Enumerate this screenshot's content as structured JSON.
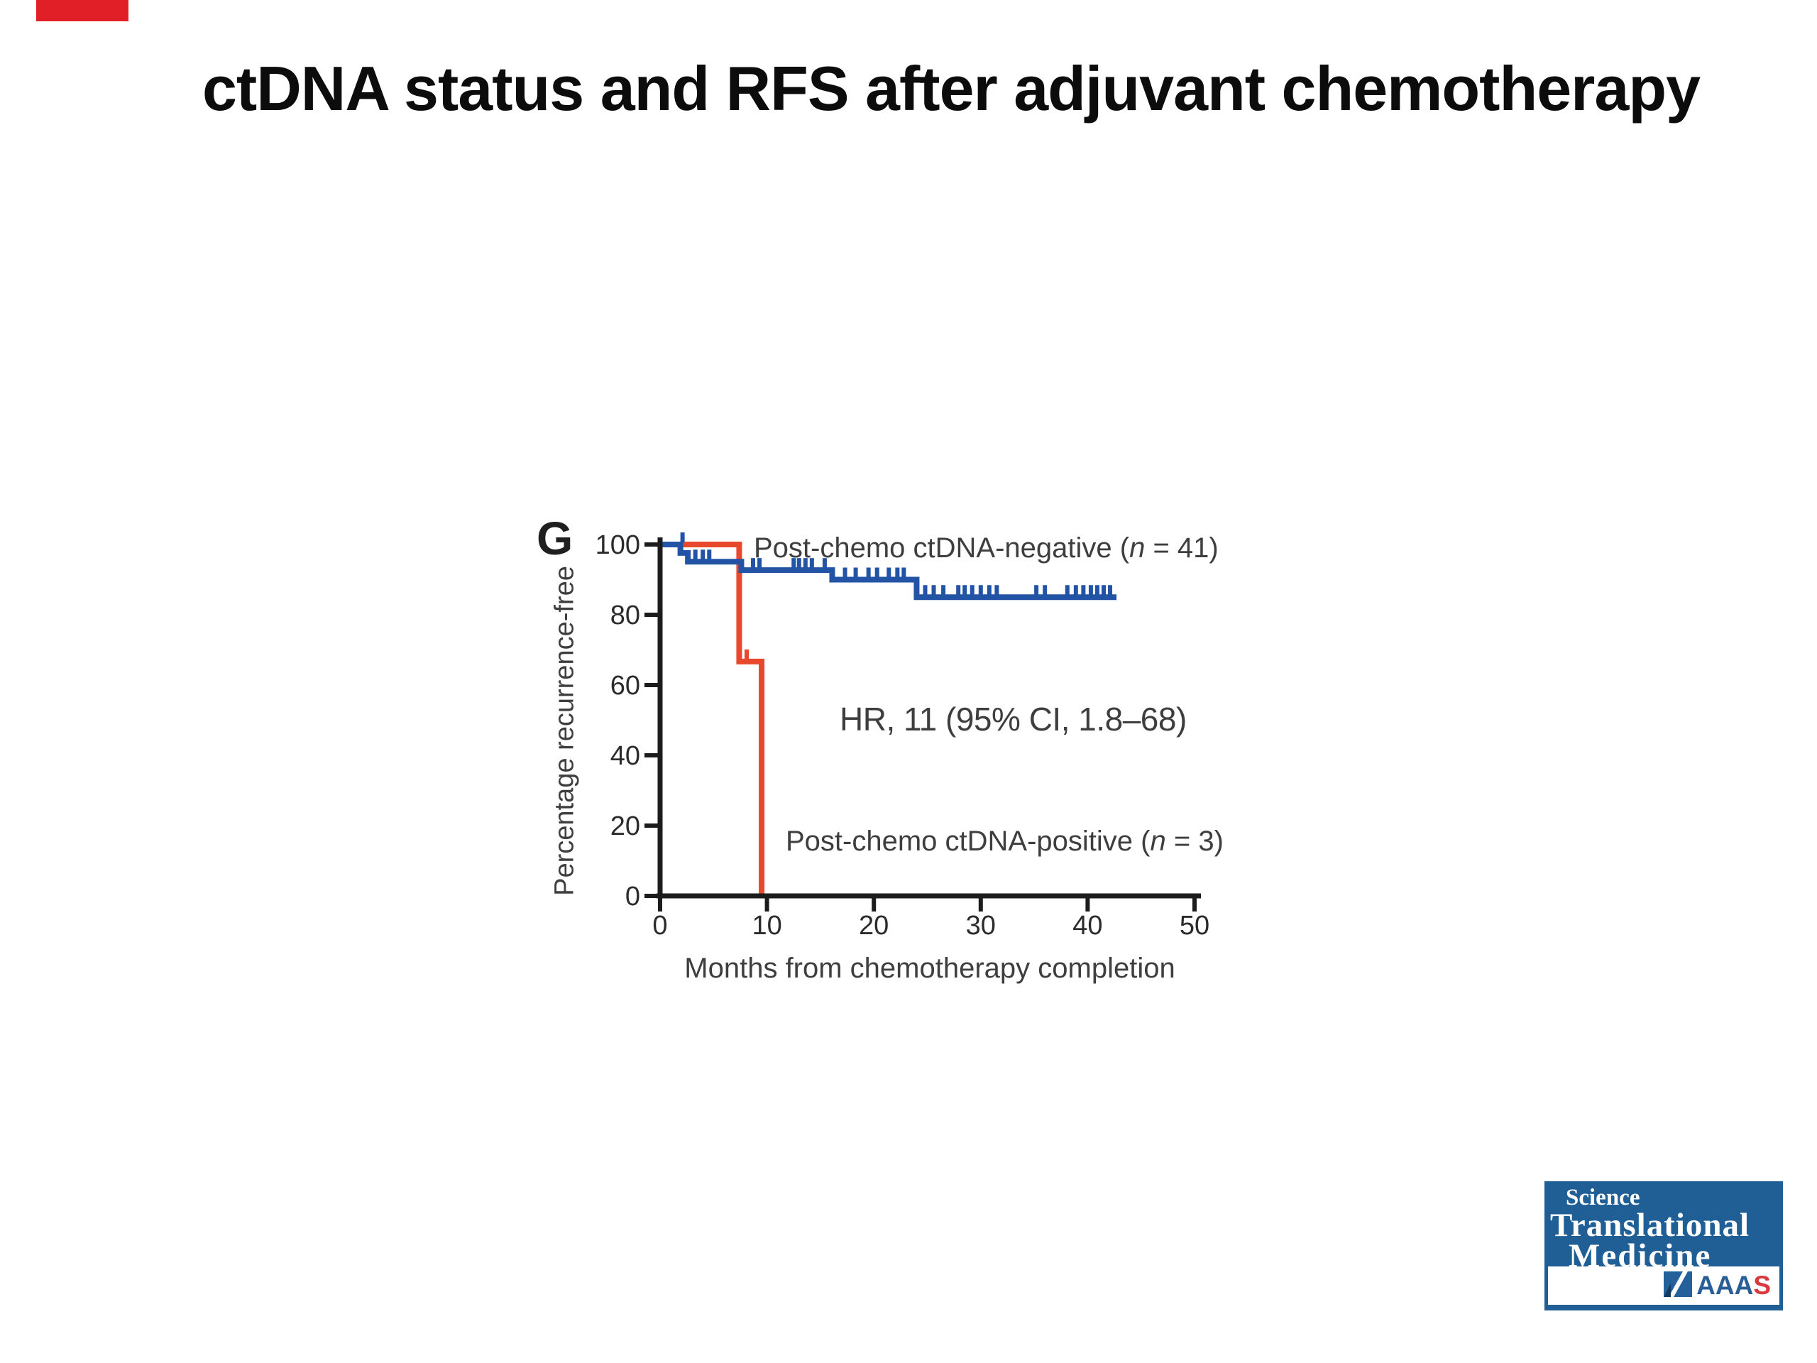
{
  "slide": {
    "title": "ctDNA status and RFS after adjuvant chemotherapy",
    "red_marker_color": "#e01f27"
  },
  "figure": {
    "panel_label": "G",
    "y_axis_label": "Percentage recurrence-free",
    "x_axis_label": "Months from chemotherapy completion",
    "hr_annotation": "HR, 11 (95% CI, 1.8–68)",
    "legend_negative": {
      "prefix": "Post-chemo ctDNA-negative (",
      "n": "n",
      "suffix": " = 41)"
    },
    "legend_positive": {
      "prefix": "Post-chemo ctDNA-positive (",
      "n": "n",
      "suffix": " = 3)"
    }
  },
  "chart_data": {
    "type": "line",
    "subtype": "kaplan-meier-step",
    "title": "",
    "xlabel": "Months from chemotherapy completion",
    "ylabel": "Percentage recurrence-free",
    "xlim": [
      0,
      50
    ],
    "ylim": [
      0,
      100
    ],
    "x_ticks": [
      0,
      10,
      20,
      30,
      40,
      50
    ],
    "y_ticks": [
      0,
      20,
      40,
      60,
      80,
      100
    ],
    "grid": false,
    "legend_position": "inline-annotations",
    "annotations": [
      "HR, 11 (95% CI, 1.8–68)"
    ],
    "axis_color": "#1c1c1c",
    "tick_label_color": "#2b2b2b",
    "series": [
      {
        "name": "Post-chemo ctDNA-negative (n = 41)",
        "color": "#2253a5",
        "steps": [
          [
            0,
            100
          ],
          [
            1.9,
            100
          ],
          [
            1.9,
            97.6
          ],
          [
            2.6,
            97.6
          ],
          [
            2.6,
            95.1
          ],
          [
            7.6,
            95.1
          ],
          [
            7.6,
            92.7
          ],
          [
            16.1,
            92.7
          ],
          [
            16.1,
            90.0
          ],
          [
            24,
            90.0
          ],
          [
            24,
            85.0
          ],
          [
            42.7,
            85.0
          ]
        ],
        "censor_marks": [
          [
            2.1,
            100
          ],
          [
            3.3,
            95.1
          ],
          [
            4.0,
            95.1
          ],
          [
            4.6,
            95.1
          ],
          [
            8.7,
            92.7
          ],
          [
            9.3,
            92.7
          ],
          [
            12.5,
            92.7
          ],
          [
            13.0,
            92.7
          ],
          [
            13.6,
            92.7
          ],
          [
            14.2,
            92.7
          ],
          [
            15.4,
            92.7
          ],
          [
            17.3,
            90.0
          ],
          [
            18.3,
            90.0
          ],
          [
            19.5,
            90.0
          ],
          [
            20.3,
            90.0
          ],
          [
            21.4,
            90.0
          ],
          [
            22.2,
            90.0
          ],
          [
            22.8,
            90.0
          ],
          [
            24.8,
            85.0
          ],
          [
            25.6,
            85.0
          ],
          [
            26.5,
            85.0
          ],
          [
            27.9,
            85.0
          ],
          [
            28.5,
            85.0
          ],
          [
            29.2,
            85.0
          ],
          [
            30.0,
            85.0
          ],
          [
            30.8,
            85.0
          ],
          [
            31.5,
            85.0
          ],
          [
            35.2,
            85.0
          ],
          [
            36.0,
            85.0
          ],
          [
            38.1,
            85.0
          ],
          [
            38.9,
            85.0
          ],
          [
            39.6,
            85.0
          ],
          [
            40.3,
            85.0
          ],
          [
            40.9,
            85.0
          ],
          [
            41.5,
            85.0
          ],
          [
            42.1,
            85.0
          ]
        ]
      },
      {
        "name": "Post-chemo ctDNA-positive (n = 3)",
        "color": "#e8492c",
        "steps": [
          [
            0,
            100
          ],
          [
            7.4,
            100
          ],
          [
            7.4,
            66.7
          ],
          [
            9.5,
            66.7
          ],
          [
            9.5,
            0
          ]
        ],
        "censor_marks": [
          [
            8.1,
            66.7
          ]
        ]
      }
    ]
  },
  "logo": {
    "line1": "Science",
    "line2": "Translational",
    "line3": "Medicine",
    "aaas_prefix": "AAA",
    "aaas_suffix": "S",
    "bg_color": "#205e96",
    "letters_color": "#2a5e96",
    "accent_red": "#d8393f"
  }
}
